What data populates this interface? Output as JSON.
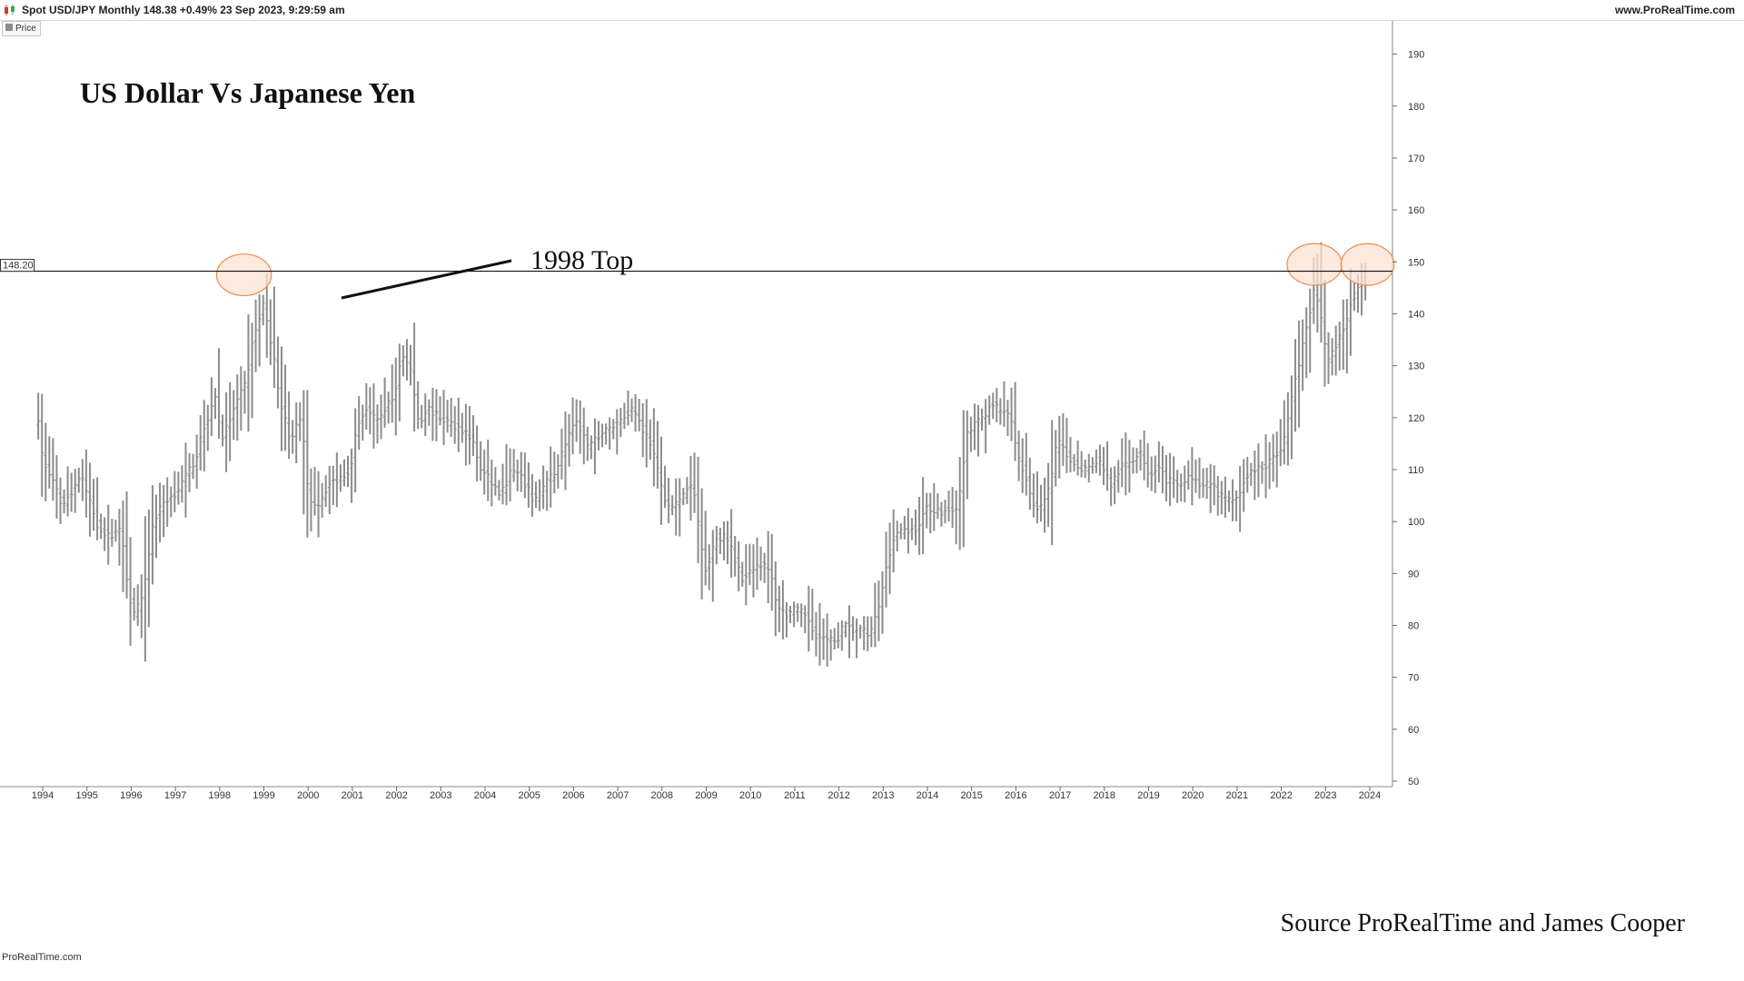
{
  "header": {
    "instrument_text": "Spot USD/JPY Monthly 148.38 +0.49% 23 Sep 2023, 9:29:59 am",
    "site": "www.ProRealTime.com"
  },
  "legend": {
    "label": "Price"
  },
  "watermark": "ProRealTime.com",
  "colors": {
    "bars": "#8c8c8c",
    "circle_fill": "#fbe3d3",
    "circle_stroke": "#ef8b4f",
    "hline": "#111111"
  },
  "chart_data": {
    "type": "ohlc",
    "title": "US Dollar Vs Japanese Yen",
    "annotation": "1998 Top",
    "source": "Source ProRealTime and James Cooper",
    "hline_label": "148.20",
    "hline_value": 148.2,
    "ylim": [
      50,
      195
    ],
    "xlim": [
      1993.85,
      2024.25
    ],
    "y_ticks": [
      50,
      60,
      70,
      80,
      90,
      100,
      110,
      120,
      130,
      140,
      150,
      160,
      170,
      180,
      190
    ],
    "x_ticks": [
      "1994",
      "1995",
      "1996",
      "1997",
      "1998",
      "1999",
      "2000",
      "2001",
      "2002",
      "2003",
      "2004",
      "2005",
      "2006",
      "2007",
      "2008",
      "2009",
      "2010",
      "2011",
      "2012",
      "2013",
      "2014",
      "2015",
      "2016",
      "2017",
      "2018",
      "2019",
      "2020",
      "2021",
      "2022",
      "2023",
      "2024"
    ],
    "highlight_circles": [
      {
        "x": 1998.55,
        "y": 147.5,
        "rx_years": 0.62,
        "ry_value": 4
      },
      {
        "x": 2022.75,
        "y": 149.5,
        "rx_years": 0.62,
        "ry_value": 4
      },
      {
        "x": 2023.95,
        "y": 149.5,
        "rx_years": 0.6,
        "ry_value": 4
      }
    ],
    "anchors": [
      [
        1993.9,
        119
      ],
      [
        1994.0,
        112
      ],
      [
        1994.2,
        108
      ],
      [
        1994.45,
        103
      ],
      [
        1994.6,
        105
      ],
      [
        1994.85,
        109
      ],
      [
        1995.1,
        103
      ],
      [
        1995.25,
        99
      ],
      [
        1995.5,
        97
      ],
      [
        1995.75,
        99
      ],
      [
        1995.95,
        86
      ],
      [
        1996.05,
        82
      ],
      [
        1996.25,
        85
      ],
      [
        1996.5,
        100
      ],
      [
        1996.75,
        104
      ],
      [
        1996.95,
        105
      ],
      [
        1997.2,
        108
      ],
      [
        1997.45,
        112
      ],
      [
        1997.65,
        118
      ],
      [
        1997.9,
        124
      ],
      [
        1998.05,
        116
      ],
      [
        1998.25,
        120
      ],
      [
        1998.4,
        123
      ],
      [
        1998.6,
        127
      ],
      [
        1998.75,
        135
      ],
      [
        1999.0,
        142
      ],
      [
        1999.15,
        135
      ],
      [
        1999.4,
        122
      ],
      [
        1999.6,
        116
      ],
      [
        1999.85,
        120
      ],
      [
        2000.0,
        105
      ],
      [
        2000.2,
        103
      ],
      [
        2000.45,
        107
      ],
      [
        2000.65,
        108
      ],
      [
        2000.95,
        110
      ],
      [
        2001.1,
        118
      ],
      [
        2001.3,
        122
      ],
      [
        2001.55,
        119
      ],
      [
        2001.75,
        122
      ],
      [
        2001.95,
        124
      ],
      [
        2002.1,
        132
      ],
      [
        2002.3,
        130
      ],
      [
        2002.5,
        119
      ],
      [
        2002.7,
        122
      ],
      [
        2002.95,
        120
      ],
      [
        2003.2,
        119
      ],
      [
        2003.45,
        118
      ],
      [
        2003.7,
        116
      ],
      [
        2003.9,
        110
      ],
      [
        2004.1,
        108
      ],
      [
        2004.35,
        105
      ],
      [
        2004.6,
        110
      ],
      [
        2004.85,
        108
      ],
      [
        2005.1,
        104
      ],
      [
        2005.35,
        107
      ],
      [
        2005.6,
        110
      ],
      [
        2005.9,
        117
      ],
      [
        2006.1,
        119
      ],
      [
        2006.35,
        114
      ],
      [
        2006.6,
        117
      ],
      [
        2006.85,
        118
      ],
      [
        2007.1,
        120
      ],
      [
        2007.35,
        122
      ],
      [
        2007.55,
        118
      ],
      [
        2007.75,
        115
      ],
      [
        2008.0,
        106
      ],
      [
        2008.2,
        102
      ],
      [
        2008.45,
        105
      ],
      [
        2008.7,
        107
      ],
      [
        2008.85,
        98
      ],
      [
        2009.0,
        90
      ],
      [
        2009.2,
        97
      ],
      [
        2009.45,
        97
      ],
      [
        2009.6,
        94
      ],
      [
        2009.8,
        89
      ],
      [
        2010.0,
        91
      ],
      [
        2010.25,
        92
      ],
      [
        2010.45,
        90
      ],
      [
        2010.6,
        84
      ],
      [
        2010.8,
        82
      ],
      [
        2011.0,
        83
      ],
      [
        2011.25,
        82
      ],
      [
        2011.5,
        78
      ],
      [
        2011.75,
        77
      ],
      [
        2011.95,
        77
      ],
      [
        2012.1,
        80
      ],
      [
        2012.3,
        79
      ],
      [
        2012.5,
        79
      ],
      [
        2012.7,
        78
      ],
      [
        2012.95,
        85
      ],
      [
        2013.1,
        93
      ],
      [
        2013.3,
        98
      ],
      [
        2013.55,
        98
      ],
      [
        2013.8,
        99
      ],
      [
        2014.0,
        103
      ],
      [
        2014.2,
        102
      ],
      [
        2014.45,
        102
      ],
      [
        2014.7,
        103
      ],
      [
        2014.9,
        117
      ],
      [
        2015.0,
        118
      ],
      [
        2015.25,
        120
      ],
      [
        2015.45,
        123
      ],
      [
        2015.65,
        121
      ],
      [
        2015.85,
        121
      ],
      [
        2016.0,
        114
      ],
      [
        2016.2,
        109
      ],
      [
        2016.45,
        102
      ],
      [
        2016.6,
        103
      ],
      [
        2016.75,
        106
      ],
      [
        2016.95,
        116
      ],
      [
        2017.1,
        113
      ],
      [
        2017.35,
        111
      ],
      [
        2017.6,
        110
      ],
      [
        2017.85,
        112
      ],
      [
        2018.0,
        110
      ],
      [
        2018.15,
        107
      ],
      [
        2018.35,
        110
      ],
      [
        2018.6,
        112
      ],
      [
        2018.85,
        113
      ],
      [
        2019.0,
        109
      ],
      [
        2019.2,
        111
      ],
      [
        2019.4,
        108
      ],
      [
        2019.65,
        107
      ],
      [
        2019.9,
        109
      ],
      [
        2020.05,
        108
      ],
      [
        2020.2,
        107
      ],
      [
        2020.4,
        107
      ],
      [
        2020.6,
        105
      ],
      [
        2020.85,
        104
      ],
      [
        2021.0,
        104
      ],
      [
        2021.2,
        109
      ],
      [
        2021.45,
        110
      ],
      [
        2021.7,
        111
      ],
      [
        2021.95,
        114
      ],
      [
        2022.05,
        115
      ],
      [
        2022.2,
        122
      ],
      [
        2022.35,
        129
      ],
      [
        2022.55,
        136
      ],
      [
        2022.75,
        145
      ],
      [
        2022.85,
        142
      ],
      [
        2022.95,
        136
      ],
      [
        2023.05,
        131
      ],
      [
        2023.25,
        134
      ],
      [
        2023.45,
        138
      ],
      [
        2023.55,
        142
      ],
      [
        2023.7,
        144
      ],
      [
        2023.8,
        146
      ],
      [
        2023.9,
        148
      ]
    ]
  }
}
